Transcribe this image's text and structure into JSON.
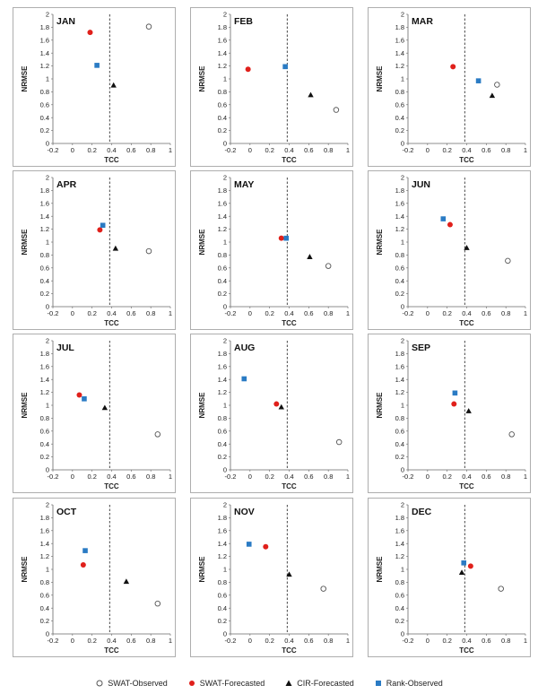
{
  "chart_data": [
    {
      "type": "scatter",
      "title": "JAN",
      "xlabel": "TCC",
      "ylabel": "NRMSE",
      "xlim": [
        -0.2,
        1
      ],
      "ylim": [
        0,
        2
      ],
      "xticks": [
        "-0.2",
        "0",
        "0.2",
        "0.4",
        "0.6",
        "0.8",
        "1"
      ],
      "yticks": [
        "0",
        "0.2",
        "0.4",
        "0.6",
        "0.8",
        "1",
        "1.2",
        "1.4",
        "1.6",
        "1.8",
        "2"
      ],
      "vline": 0.38,
      "series": [
        {
          "name": "SWAT-Observed",
          "x": [
            0.78
          ],
          "y": [
            1.81
          ]
        },
        {
          "name": "SWAT-Forecasted",
          "x": [
            0.18
          ],
          "y": [
            1.72
          ]
        },
        {
          "name": "CIR-Forecasted",
          "x": [
            0.42
          ],
          "y": [
            0.9
          ]
        },
        {
          "name": "Rank-Observed",
          "x": [
            0.25
          ],
          "y": [
            1.21
          ]
        }
      ]
    },
    {
      "type": "scatter",
      "title": "FEB",
      "xlabel": "TCC",
      "ylabel": "NRMSE",
      "xlim": [
        -0.2,
        1
      ],
      "ylim": [
        0,
        2
      ],
      "xticks": [
        "-0.2",
        "0",
        "0.2",
        "0.4",
        "0.6",
        "0.8",
        "1"
      ],
      "yticks": [
        "0",
        "0.2",
        "0.4",
        "0.6",
        "0.8",
        "1",
        "1.2",
        "1.4",
        "1.6",
        "1.8",
        "2"
      ],
      "vline": 0.38,
      "series": [
        {
          "name": "SWAT-Observed",
          "x": [
            0.88
          ],
          "y": [
            0.52
          ]
        },
        {
          "name": "SWAT-Forecasted",
          "x": [
            -0.02
          ],
          "y": [
            1.15
          ]
        },
        {
          "name": "CIR-Forecasted",
          "x": [
            0.62
          ],
          "y": [
            0.75
          ]
        },
        {
          "name": "Rank-Observed",
          "x": [
            0.36
          ],
          "y": [
            1.19
          ]
        }
      ]
    },
    {
      "type": "scatter",
      "title": "MAR",
      "xlabel": "TCC",
      "ylabel": "NRMSE",
      "xlim": [
        -0.2,
        1
      ],
      "ylim": [
        0,
        2
      ],
      "xticks": [
        "-0.2",
        "0",
        "0.2",
        "0.4",
        "0.6",
        "0.8",
        "1"
      ],
      "yticks": [
        "0",
        "0.2",
        "0.4",
        "0.6",
        "0.8",
        "1",
        "1.2",
        "1.4",
        "1.6",
        "1.8",
        "2"
      ],
      "vline": 0.38,
      "series": [
        {
          "name": "SWAT-Observed",
          "x": [
            0.71
          ],
          "y": [
            0.91
          ]
        },
        {
          "name": "SWAT-Forecasted",
          "x": [
            0.26
          ],
          "y": [
            1.19
          ]
        },
        {
          "name": "CIR-Forecasted",
          "x": [
            0.66
          ],
          "y": [
            0.74
          ]
        },
        {
          "name": "Rank-Observed",
          "x": [
            0.52
          ],
          "y": [
            0.97
          ]
        }
      ]
    },
    {
      "type": "scatter",
      "title": "APR",
      "xlabel": "TCC",
      "ylabel": "NRMSE",
      "xlim": [
        -0.2,
        1
      ],
      "ylim": [
        0,
        2
      ],
      "xticks": [
        "-0.2",
        "0",
        "0.2",
        "0.4",
        "0.6",
        "0.8",
        "1"
      ],
      "yticks": [
        "0",
        "0.2",
        "0.4",
        "0.6",
        "0.8",
        "1",
        "1.2",
        "1.4",
        "1.6",
        "1.8",
        "2"
      ],
      "vline": 0.38,
      "series": [
        {
          "name": "SWAT-Observed",
          "x": [
            0.78
          ],
          "y": [
            0.86
          ]
        },
        {
          "name": "SWAT-Forecasted",
          "x": [
            0.28
          ],
          "y": [
            1.19
          ]
        },
        {
          "name": "CIR-Forecasted",
          "x": [
            0.44
          ],
          "y": [
            0.9
          ]
        },
        {
          "name": "Rank-Observed",
          "x": [
            0.31
          ],
          "y": [
            1.26
          ]
        }
      ]
    },
    {
      "type": "scatter",
      "title": "MAY",
      "xlabel": "TCC",
      "ylabel": "NRMSE",
      "xlim": [
        -0.2,
        1
      ],
      "ylim": [
        0,
        2
      ],
      "xticks": [
        "-0.2",
        "0",
        "0.2",
        "0.4",
        "0.6",
        "0.8",
        "1"
      ],
      "yticks": [
        "0",
        "0.2",
        "0.4",
        "0.6",
        "0.8",
        "1",
        "1.2",
        "1.4",
        "1.6",
        "1.8",
        "2"
      ],
      "vline": 0.38,
      "series": [
        {
          "name": "SWAT-Observed",
          "x": [
            0.8
          ],
          "y": [
            0.63
          ]
        },
        {
          "name": "SWAT-Forecasted",
          "x": [
            0.32
          ],
          "y": [
            1.06
          ]
        },
        {
          "name": "CIR-Forecasted",
          "x": [
            0.61
          ],
          "y": [
            0.77
          ]
        },
        {
          "name": "Rank-Observed",
          "x": [
            0.37
          ],
          "y": [
            1.06
          ]
        }
      ]
    },
    {
      "type": "scatter",
      "title": "JUN",
      "xlabel": "TCC",
      "ylabel": "NRMSE",
      "xlim": [
        -0.2,
        1
      ],
      "ylim": [
        0,
        2
      ],
      "xticks": [
        "-0.2",
        "0",
        "0.2",
        "0.4",
        "0.6",
        "0.8",
        "1"
      ],
      "yticks": [
        "0",
        "0.2",
        "0.4",
        "0.6",
        "0.8",
        "1",
        "1.2",
        "1.4",
        "1.6",
        "1.8",
        "2"
      ],
      "vline": 0.38,
      "series": [
        {
          "name": "SWAT-Observed",
          "x": [
            0.82
          ],
          "y": [
            0.71
          ]
        },
        {
          "name": "SWAT-Forecasted",
          "x": [
            0.23
          ],
          "y": [
            1.27
          ]
        },
        {
          "name": "CIR-Forecasted",
          "x": [
            0.4
          ],
          "y": [
            0.91
          ]
        },
        {
          "name": "Rank-Observed",
          "x": [
            0.16
          ],
          "y": [
            1.36
          ]
        }
      ]
    },
    {
      "type": "scatter",
      "title": "JUL",
      "xlabel": "TCC",
      "ylabel": "NRMSE",
      "xlim": [
        -0.2,
        1
      ],
      "ylim": [
        0,
        2
      ],
      "xticks": [
        "-0.2",
        "0",
        "0.2",
        "0.4",
        "0.6",
        "0.8",
        "1"
      ],
      "yticks": [
        "0",
        "0.2",
        "0.4",
        "0.6",
        "0.8",
        "1",
        "1.2",
        "1.4",
        "1.6",
        "1.8",
        "2"
      ],
      "vline": 0.38,
      "series": [
        {
          "name": "SWAT-Observed",
          "x": [
            0.87
          ],
          "y": [
            0.55
          ]
        },
        {
          "name": "SWAT-Forecasted",
          "x": [
            0.07
          ],
          "y": [
            1.16
          ]
        },
        {
          "name": "CIR-Forecasted",
          "x": [
            0.33
          ],
          "y": [
            0.96
          ]
        },
        {
          "name": "Rank-Observed",
          "x": [
            0.12
          ],
          "y": [
            1.1
          ]
        }
      ]
    },
    {
      "type": "scatter",
      "title": "AUG",
      "xlabel": "TCC",
      "ylabel": "NRMSE",
      "xlim": [
        -0.2,
        1
      ],
      "ylim": [
        0,
        2
      ],
      "xticks": [
        "-0.2",
        "0",
        "0.2",
        "0.4",
        "0.6",
        "0.8",
        "1"
      ],
      "yticks": [
        "0",
        "0.2",
        "0.4",
        "0.6",
        "0.8",
        "1",
        "1.2",
        "1.4",
        "1.6",
        "1.8",
        "2"
      ],
      "vline": 0.38,
      "series": [
        {
          "name": "SWAT-Observed",
          "x": [
            0.91
          ],
          "y": [
            0.43
          ]
        },
        {
          "name": "SWAT-Forecasted",
          "x": [
            0.27
          ],
          "y": [
            1.02
          ]
        },
        {
          "name": "CIR-Forecasted",
          "x": [
            0.32
          ],
          "y": [
            0.97
          ]
        },
        {
          "name": "Rank-Observed",
          "x": [
            -0.06
          ],
          "y": [
            1.41
          ]
        }
      ]
    },
    {
      "type": "scatter",
      "title": "SEP",
      "xlabel": "TCC",
      "ylabel": "NRMSE",
      "xlim": [
        -0.2,
        1
      ],
      "ylim": [
        0,
        2
      ],
      "xticks": [
        "-0.2",
        "0",
        "0.2",
        "0.4",
        "0.6",
        "0.8",
        "1"
      ],
      "yticks": [
        "0",
        "0.2",
        "0.4",
        "0.6",
        "0.8",
        "1",
        "1.2",
        "1.4",
        "1.6",
        "1.8",
        "2"
      ],
      "vline": 0.38,
      "series": [
        {
          "name": "SWAT-Observed",
          "x": [
            0.86
          ],
          "y": [
            0.55
          ]
        },
        {
          "name": "SWAT-Forecasted",
          "x": [
            0.27
          ],
          "y": [
            1.02
          ]
        },
        {
          "name": "CIR-Forecasted",
          "x": [
            0.42
          ],
          "y": [
            0.91
          ]
        },
        {
          "name": "Rank-Observed",
          "x": [
            0.28
          ],
          "y": [
            1.19
          ]
        }
      ]
    },
    {
      "type": "scatter",
      "title": "OCT",
      "xlabel": "TCC",
      "ylabel": "NRMSE",
      "xlim": [
        -0.2,
        1
      ],
      "ylim": [
        0,
        2
      ],
      "xticks": [
        "-0.2",
        "0",
        "0.2",
        "0.4",
        "0.6",
        "0.8",
        "1"
      ],
      "yticks": [
        "0",
        "0.2",
        "0.4",
        "0.6",
        "0.8",
        "1",
        "1.2",
        "1.4",
        "1.6",
        "1.8",
        "2"
      ],
      "vline": 0.38,
      "series": [
        {
          "name": "SWAT-Observed",
          "x": [
            0.87
          ],
          "y": [
            0.47
          ]
        },
        {
          "name": "SWAT-Forecasted",
          "x": [
            0.11
          ],
          "y": [
            1.07
          ]
        },
        {
          "name": "CIR-Forecasted",
          "x": [
            0.55
          ],
          "y": [
            0.81
          ]
        },
        {
          "name": "Rank-Observed",
          "x": [
            0.13
          ],
          "y": [
            1.29
          ]
        }
      ]
    },
    {
      "type": "scatter",
      "title": "NOV",
      "xlabel": "TCC",
      "ylabel": "NRMSE",
      "xlim": [
        -0.2,
        1
      ],
      "ylim": [
        0,
        2
      ],
      "xticks": [
        "-0.2",
        "0",
        "0.2",
        "0.4",
        "0.6",
        "0.8",
        "1"
      ],
      "yticks": [
        "0",
        "0.2",
        "0.4",
        "0.6",
        "0.8",
        "1",
        "1.2",
        "1.4",
        "1.6",
        "1.8",
        "2"
      ],
      "vline": 0.38,
      "series": [
        {
          "name": "SWAT-Observed",
          "x": [
            0.75
          ],
          "y": [
            0.7
          ]
        },
        {
          "name": "SWAT-Forecasted",
          "x": [
            0.16
          ],
          "y": [
            1.35
          ]
        },
        {
          "name": "CIR-Forecasted",
          "x": [
            0.4
          ],
          "y": [
            0.92
          ]
        },
        {
          "name": "Rank-Observed",
          "x": [
            -0.01
          ],
          "y": [
            1.39
          ]
        }
      ]
    },
    {
      "type": "scatter",
      "title": "DEC",
      "xlabel": "TCC",
      "ylabel": "NRMSE",
      "xlim": [
        -0.2,
        1
      ],
      "ylim": [
        0,
        2
      ],
      "xticks": [
        "-0.2",
        "0",
        "0.2",
        "0.4",
        "0.6",
        "0.8",
        "1"
      ],
      "yticks": [
        "0",
        "0.2",
        "0.4",
        "0.6",
        "0.8",
        "1",
        "1.2",
        "1.4",
        "1.6",
        "1.8",
        "2"
      ],
      "vline": 0.38,
      "series": [
        {
          "name": "SWAT-Observed",
          "x": [
            0.75
          ],
          "y": [
            0.7
          ]
        },
        {
          "name": "SWAT-Forecasted",
          "x": [
            0.44
          ],
          "y": [
            1.05
          ]
        },
        {
          "name": "CIR-Forecasted",
          "x": [
            0.35
          ],
          "y": [
            0.95
          ]
        },
        {
          "name": "Rank-Observed",
          "x": [
            0.37
          ],
          "y": [
            1.1
          ]
        }
      ]
    }
  ],
  "legend": [
    {
      "name": "SWAT-Observed",
      "marker": "circle-open",
      "color": "#555555"
    },
    {
      "name": "SWAT-Forecasted",
      "marker": "circle",
      "color": "#e0201b"
    },
    {
      "name": "CIR-Forecasted",
      "marker": "triangle",
      "color": "#111111"
    },
    {
      "name": "Rank-Observed",
      "marker": "square",
      "color": "#2a7bc4"
    }
  ]
}
